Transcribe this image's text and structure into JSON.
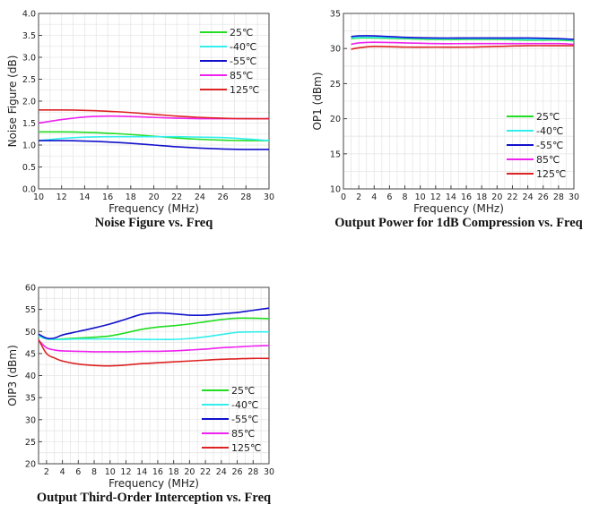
{
  "chart_data": [
    {
      "type": "line",
      "title": "Noise Figure vs. Freq",
      "xlabel": "Frequency  (MHz)",
      "ylabel": "Noise Figure (dB)",
      "xlim": [
        10,
        30
      ],
      "ylim": [
        0,
        4
      ],
      "xticks": [
        10,
        12,
        14,
        16,
        18,
        20,
        22,
        24,
        26,
        28,
        30
      ],
      "yticks": [
        "0.0",
        "0.5",
        "1.0",
        "1.5",
        "2.0",
        "2.5",
        "3.0",
        "3.5",
        "4.0"
      ],
      "grid": true,
      "legend_position": "top-right",
      "x": [
        10,
        12,
        14,
        16,
        18,
        20,
        22,
        24,
        26,
        28,
        30
      ],
      "series": [
        {
          "name": "25℃",
          "color": "#22dd22",
          "values": [
            1.3,
            1.3,
            1.29,
            1.27,
            1.24,
            1.2,
            1.16,
            1.13,
            1.11,
            1.1,
            1.1
          ]
        },
        {
          "name": "-40℃",
          "color": "#33eeee",
          "values": [
            1.1,
            1.15,
            1.18,
            1.19,
            1.19,
            1.19,
            1.19,
            1.18,
            1.17,
            1.14,
            1.1
          ]
        },
        {
          "name": "-55℃",
          "color": "#1111cc",
          "values": [
            1.1,
            1.1,
            1.09,
            1.07,
            1.04,
            1.0,
            0.96,
            0.93,
            0.91,
            0.9,
            0.9
          ]
        },
        {
          "name": "85℃",
          "color": "#ee22ee",
          "values": [
            1.5,
            1.58,
            1.64,
            1.66,
            1.65,
            1.63,
            1.61,
            1.6,
            1.6,
            1.6,
            1.6
          ]
        },
        {
          "name": "125℃",
          "color": "#dd2222",
          "values": [
            1.8,
            1.8,
            1.79,
            1.77,
            1.74,
            1.7,
            1.66,
            1.63,
            1.61,
            1.6,
            1.6
          ]
        }
      ]
    },
    {
      "type": "line",
      "title": "Output Power for 1dB Compression vs. Freq",
      "xlabel": "Frequency  (MHz)",
      "ylabel": "OP1 (dBm)",
      "xlim": [
        0,
        30
      ],
      "ylim": [
        10,
        35
      ],
      "xticks": [
        0,
        2,
        4,
        6,
        8,
        10,
        12,
        14,
        16,
        18,
        20,
        22,
        24,
        26,
        28,
        30
      ],
      "yticks": [
        "10",
        "15",
        "20",
        "25",
        "30",
        "35"
      ],
      "grid": true,
      "legend_position": "bottom-right",
      "x": [
        1,
        2,
        4,
        8,
        12,
        16,
        20,
        24,
        28,
        30
      ],
      "series": [
        {
          "name": "25℃",
          "color": "#22dd22",
          "values": [
            31.4,
            31.5,
            31.5,
            31.4,
            31.3,
            31.3,
            31.3,
            31.2,
            31.2,
            31.1
          ]
        },
        {
          "name": "-40℃",
          "color": "#33eeee",
          "values": [
            31.5,
            31.6,
            31.6,
            31.5,
            31.4,
            31.4,
            31.4,
            31.3,
            31.3,
            31.2
          ]
        },
        {
          "name": "-55℃",
          "color": "#1111cc",
          "values": [
            31.7,
            31.8,
            31.8,
            31.6,
            31.5,
            31.5,
            31.5,
            31.5,
            31.4,
            31.3
          ]
        },
        {
          "name": "85℃",
          "color": "#ee22ee",
          "values": [
            30.6,
            30.8,
            30.9,
            30.8,
            30.7,
            30.7,
            30.7,
            30.7,
            30.7,
            30.6
          ]
        },
        {
          "name": "125℃",
          "color": "#dd2222",
          "values": [
            29.9,
            30.1,
            30.3,
            30.2,
            30.2,
            30.2,
            30.3,
            30.4,
            30.4,
            30.4
          ]
        }
      ]
    },
    {
      "type": "line",
      "title": "Output Third-Order Interception vs. Freq",
      "xlabel": "Frequency  (MHz)",
      "ylabel": "OIP3 (dBm)",
      "xlim": [
        1,
        30
      ],
      "ylim": [
        20,
        60
      ],
      "xticks": [
        2,
        4,
        6,
        8,
        10,
        12,
        14,
        16,
        18,
        20,
        22,
        24,
        26,
        28,
        30
      ],
      "yticks": [
        "20",
        "25",
        "30",
        "35",
        "40",
        "45",
        "50",
        "55",
        "60"
      ],
      "grid": true,
      "legend_position": "bottom-right",
      "x": [
        1,
        2,
        3,
        4,
        6,
        8,
        10,
        12,
        14,
        16,
        18,
        20,
        22,
        24,
        26,
        28,
        30
      ],
      "series": [
        {
          "name": "25℃",
          "color": "#22dd22",
          "values": [
            49,
            48.3,
            48.2,
            48.3,
            48.5,
            48.7,
            49.0,
            49.7,
            50.5,
            51,
            51.3,
            51.7,
            52.2,
            52.7,
            53,
            53,
            52.9
          ]
        },
        {
          "name": "-40℃",
          "color": "#33eeee",
          "values": [
            49,
            48.3,
            48.2,
            48.2,
            48.3,
            48.3,
            48.3,
            48.3,
            48.2,
            48.2,
            48.2,
            48.4,
            48.8,
            49.3,
            49.8,
            49.9,
            49.9
          ]
        },
        {
          "name": "-55℃",
          "color": "#1111cc",
          "values": [
            49.4,
            48.5,
            48.5,
            49.2,
            50,
            50.8,
            51.7,
            52.8,
            53.9,
            54.2,
            54,
            53.7,
            53.7,
            54,
            54.3,
            54.8,
            55.3
          ]
        },
        {
          "name": "85℃",
          "color": "#ee22ee",
          "values": [
            48,
            46.3,
            45.8,
            45.6,
            45.5,
            45.4,
            45.4,
            45.4,
            45.5,
            45.5,
            45.6,
            45.8,
            46,
            46.3,
            46.5,
            46.7,
            46.8
          ]
        },
        {
          "name": "125℃",
          "color": "#dd2222",
          "values": [
            48.2,
            45,
            44,
            43.3,
            42.6,
            42.3,
            42.2,
            42.4,
            42.7,
            42.9,
            43.1,
            43.3,
            43.5,
            43.7,
            43.8,
            43.9,
            43.9
          ]
        }
      ]
    }
  ]
}
